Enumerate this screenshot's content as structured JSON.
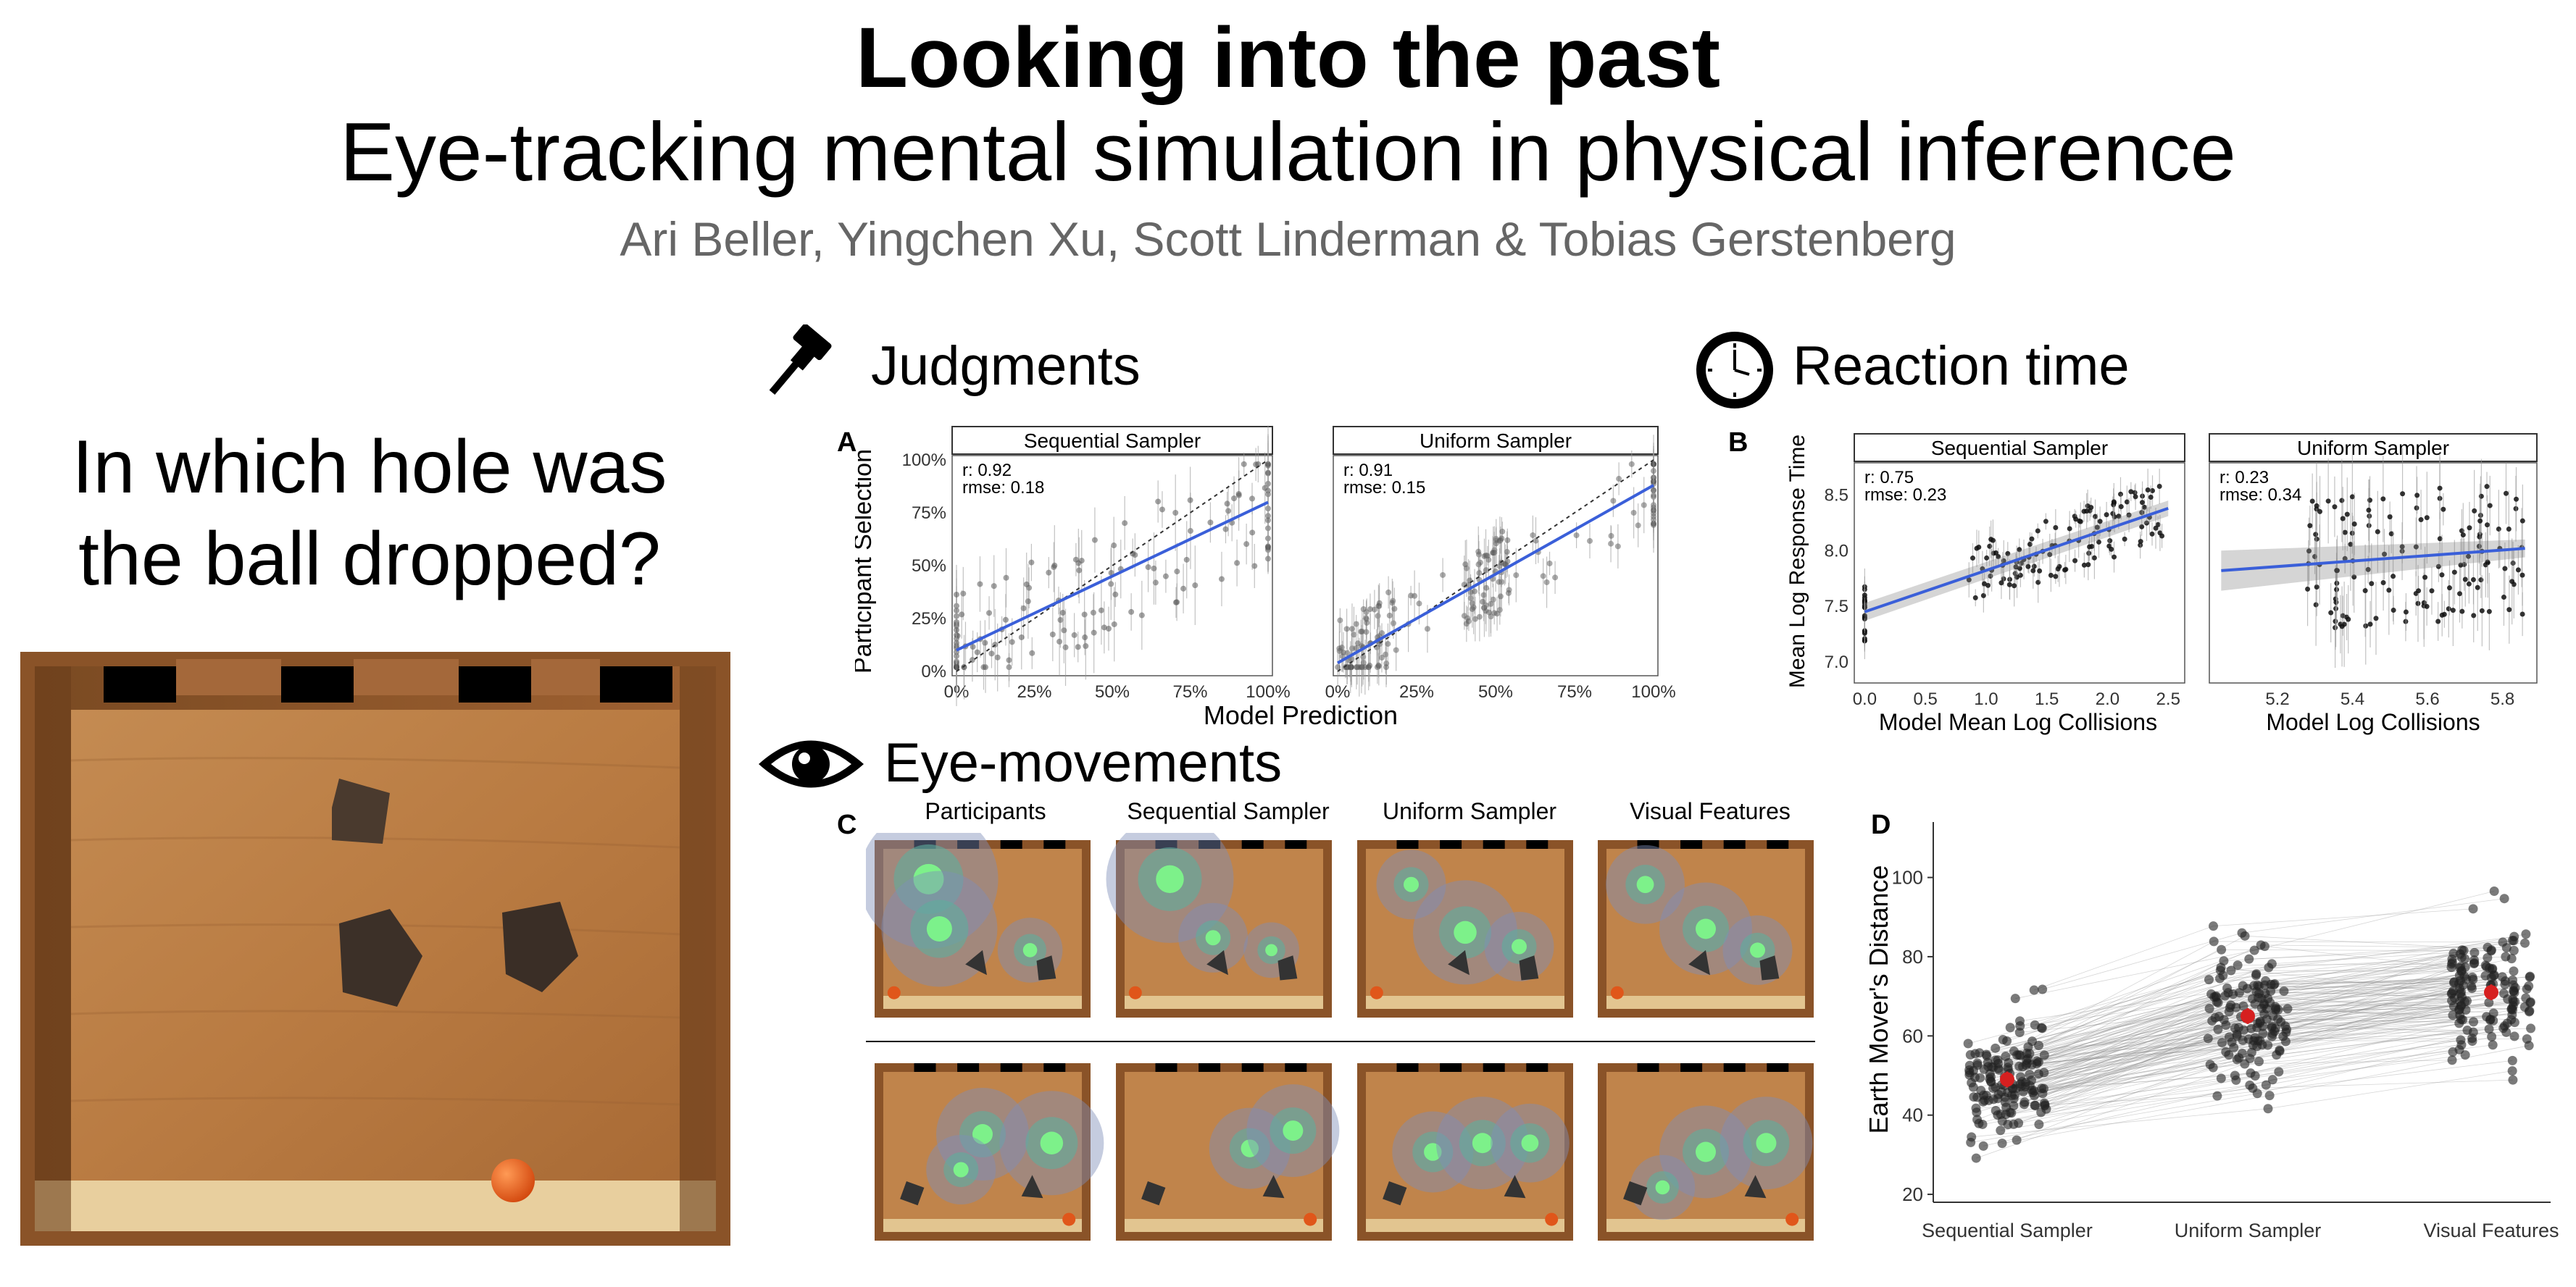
{
  "header": {
    "title": "Looking into the past",
    "subtitle": "Eye-tracking mental simulation in physical inference",
    "authors": "Ari Beller, Yingchen Xu, Scott Linderman & Tobias Gerstenberg"
  },
  "question": {
    "line1": "In which hole was",
    "line2": "the ball dropped?"
  },
  "sections": {
    "judgments": "Judgments",
    "reaction_time": "Reaction time",
    "eye_movements": "Eye-movements"
  },
  "panel_letters": {
    "a": "A",
    "b": "B",
    "c": "C",
    "d": "D"
  },
  "colors": {
    "fit_line": "#3a5fd9",
    "mean_dot": "#d62020",
    "wood": "#b77a45"
  },
  "chart_data": [
    {
      "id": "A1",
      "type": "scatter",
      "title": "Sequential Sampler",
      "xlabel": "Model Prediction",
      "ylabel": "Participant Selection",
      "xticks": [
        "0%",
        "25%",
        "50%",
        "75%",
        "100%"
      ],
      "yticks": [
        "0%",
        "25%",
        "50%",
        "75%",
        "100%"
      ],
      "xlim": [
        0,
        100
      ],
      "ylim": [
        0,
        100
      ],
      "stats": {
        "r": "r: 0.92",
        "rmse": "rmse: 0.18"
      },
      "fit": {
        "x": [
          0,
          100
        ],
        "y": [
          10,
          80
        ]
      }
    },
    {
      "id": "A2",
      "type": "scatter",
      "title": "Uniform Sampler",
      "xlabel": "Model Prediction",
      "xticks": [
        "0%",
        "25%",
        "50%",
        "75%",
        "100%"
      ],
      "xlim": [
        0,
        100
      ],
      "ylim": [
        0,
        100
      ],
      "stats": {
        "r": "r: 0.91",
        "rmse": "rmse: 0.15"
      },
      "fit": {
        "x": [
          0,
          100
        ],
        "y": [
          4,
          88
        ]
      }
    },
    {
      "id": "B1",
      "type": "scatter",
      "title": "Sequential Sampler",
      "xlabel": "Model Mean Log Collisions",
      "ylabel": "Mean Log Response Time",
      "xticks": [
        "0.0",
        "0.5",
        "1.0",
        "1.5",
        "2.0",
        "2.5"
      ],
      "yticks": [
        "7.0",
        "7.5",
        "8.0",
        "8.5"
      ],
      "xlim": [
        -0.05,
        2.6
      ],
      "ylim": [
        6.85,
        8.75
      ],
      "stats": {
        "r": "r:  0.75",
        "rmse": "rmse:  0.23"
      },
      "fit": {
        "x": [
          0.0,
          2.5
        ],
        "y": [
          7.45,
          8.38
        ]
      }
    },
    {
      "id": "B2",
      "type": "scatter",
      "title": "Uniform Sampler",
      "xlabel": "Model Log Collisions",
      "xticks": [
        "5.2",
        "5.4",
        "5.6",
        "5.8"
      ],
      "xlim": [
        5.03,
        5.88
      ],
      "ylim": [
        6.85,
        8.75
      ],
      "stats": {
        "r": "r: 0.23",
        "rmse": "rmse: 0.34"
      },
      "fit": {
        "x": [
          5.05,
          5.86
        ],
        "y": [
          7.82,
          8.02
        ]
      }
    },
    {
      "id": "D",
      "type": "scatter",
      "title": "",
      "categories": [
        "Sequential Sampler",
        "Uniform Sampler",
        "Visual Features"
      ],
      "ylabel": "Earth Mover's Distance",
      "yticks": [
        "20",
        "40",
        "60",
        "80",
        "100"
      ],
      "ylim": [
        18,
        114
      ],
      "means": [
        49,
        65,
        71
      ]
    }
  ],
  "heatmaps": {
    "columns": [
      "Participants",
      "Sequential Sampler",
      "Uniform Sampler",
      "Visual Features"
    ]
  }
}
